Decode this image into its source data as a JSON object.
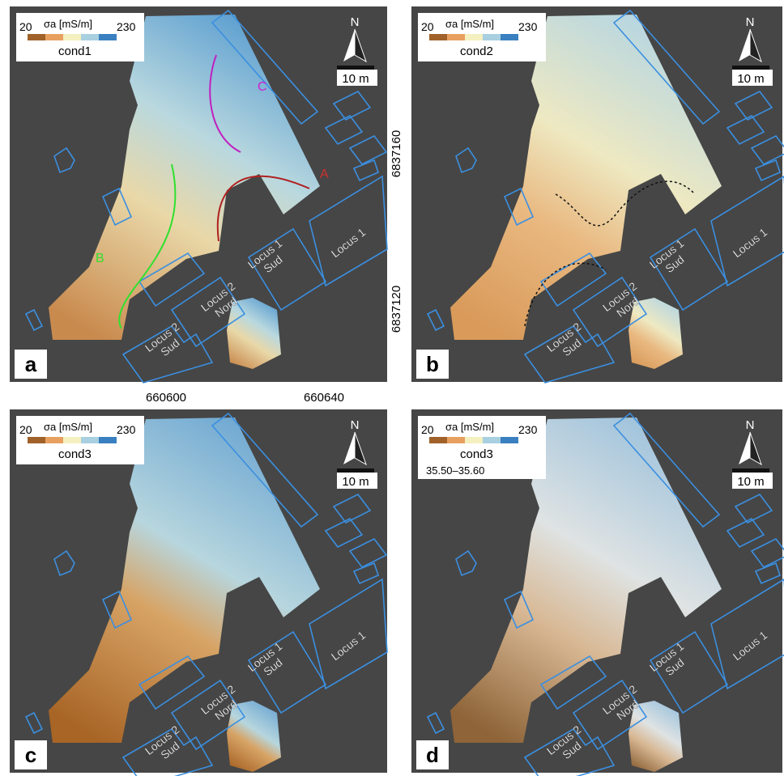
{
  "panels": [
    {
      "letter": "a",
      "legend": {
        "min": "20",
        "label": "σa [mS/m]",
        "max": "230",
        "variable": "cond1"
      },
      "north": "N",
      "scale": "10 m",
      "annotations": [
        "C",
        "A",
        "B"
      ],
      "loci": [
        [
          "Locus 2",
          "Sud"
        ],
        [
          "Locus 2",
          "Nord"
        ],
        [
          "Locus 1",
          "Sud"
        ],
        [
          "Locus 1"
        ]
      ]
    },
    {
      "letter": "b",
      "legend": {
        "min": "20",
        "label": "σa [mS/m]",
        "max": "230",
        "variable": "cond2"
      },
      "north": "N",
      "scale": "10 m",
      "loci": [
        [
          "Locus 2",
          "Sud"
        ],
        [
          "Locus 2",
          "Nord"
        ],
        [
          "Locus 1",
          "Sud"
        ],
        [
          "Locus 1"
        ]
      ]
    },
    {
      "letter": "c",
      "legend": {
        "min": "20",
        "label": "σa [mS/m]",
        "max": "230",
        "variable": "cond3"
      },
      "north": "N",
      "scale": "10 m",
      "loci": [
        [
          "Locus 2",
          "Sud"
        ],
        [
          "Locus 2",
          "Nord"
        ],
        [
          "Locus 1",
          "Sud"
        ],
        [
          "Locus 1"
        ]
      ]
    },
    {
      "letter": "d",
      "legend": {
        "min": "20",
        "label": "σa [mS/m]",
        "max": "230",
        "variable": "cond3"
      },
      "subtitle": "35.50–35.60",
      "north": "N",
      "scale": "10 m",
      "loci": [
        [
          "Locus 2",
          "Sud"
        ],
        [
          "Locus 2",
          "Nord"
        ],
        [
          "Locus 1",
          "Sud"
        ],
        [
          "Locus 1"
        ]
      ]
    }
  ],
  "axes": {
    "y_labels": [
      "6837160",
      "6837120"
    ],
    "x_labels": [
      "660600",
      "660640"
    ]
  }
}
